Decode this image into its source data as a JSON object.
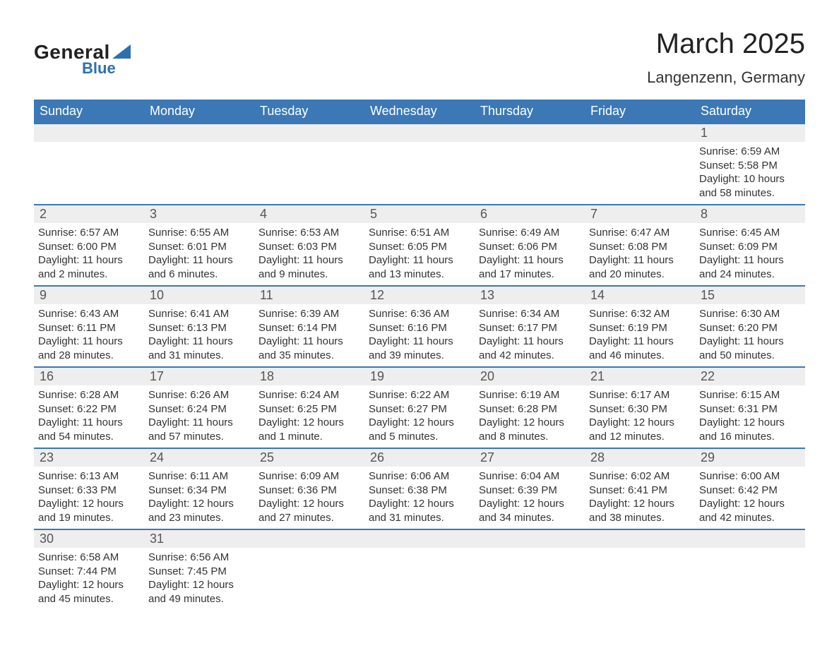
{
  "logo": {
    "text_general": "General",
    "text_blue": "Blue",
    "triangle_color": "#2e6fb0"
  },
  "title": "March 2025",
  "location": "Langenzenn, Germany",
  "colors": {
    "header_bg": "#3b78b5",
    "header_text": "#ffffff",
    "daynum_bg": "#eeeeee",
    "daynum_text": "#555555",
    "body_text": "#333333",
    "row_divider": "#3b78b5",
    "page_bg": "#ffffff"
  },
  "typography": {
    "title_fontsize": 40,
    "location_fontsize": 22,
    "dayheader_fontsize": 18,
    "daynum_fontsize": 18,
    "content_fontsize": 15
  },
  "day_headers": [
    "Sunday",
    "Monday",
    "Tuesday",
    "Wednesday",
    "Thursday",
    "Friday",
    "Saturday"
  ],
  "labels": {
    "sunrise": "Sunrise:",
    "sunset": "Sunset:",
    "daylight": "Daylight:"
  },
  "weeks": [
    [
      {
        "empty": true
      },
      {
        "empty": true
      },
      {
        "empty": true
      },
      {
        "empty": true
      },
      {
        "empty": true
      },
      {
        "empty": true
      },
      {
        "day": "1",
        "sunrise": "6:59 AM",
        "sunset": "5:58 PM",
        "daylight": "10 hours and 58 minutes."
      }
    ],
    [
      {
        "day": "2",
        "sunrise": "6:57 AM",
        "sunset": "6:00 PM",
        "daylight": "11 hours and 2 minutes."
      },
      {
        "day": "3",
        "sunrise": "6:55 AM",
        "sunset": "6:01 PM",
        "daylight": "11 hours and 6 minutes."
      },
      {
        "day": "4",
        "sunrise": "6:53 AM",
        "sunset": "6:03 PM",
        "daylight": "11 hours and 9 minutes."
      },
      {
        "day": "5",
        "sunrise": "6:51 AM",
        "sunset": "6:05 PM",
        "daylight": "11 hours and 13 minutes."
      },
      {
        "day": "6",
        "sunrise": "6:49 AM",
        "sunset": "6:06 PM",
        "daylight": "11 hours and 17 minutes."
      },
      {
        "day": "7",
        "sunrise": "6:47 AM",
        "sunset": "6:08 PM",
        "daylight": "11 hours and 20 minutes."
      },
      {
        "day": "8",
        "sunrise": "6:45 AM",
        "sunset": "6:09 PM",
        "daylight": "11 hours and 24 minutes."
      }
    ],
    [
      {
        "day": "9",
        "sunrise": "6:43 AM",
        "sunset": "6:11 PM",
        "daylight": "11 hours and 28 minutes."
      },
      {
        "day": "10",
        "sunrise": "6:41 AM",
        "sunset": "6:13 PM",
        "daylight": "11 hours and 31 minutes."
      },
      {
        "day": "11",
        "sunrise": "6:39 AM",
        "sunset": "6:14 PM",
        "daylight": "11 hours and 35 minutes."
      },
      {
        "day": "12",
        "sunrise": "6:36 AM",
        "sunset": "6:16 PM",
        "daylight": "11 hours and 39 minutes."
      },
      {
        "day": "13",
        "sunrise": "6:34 AM",
        "sunset": "6:17 PM",
        "daylight": "11 hours and 42 minutes."
      },
      {
        "day": "14",
        "sunrise": "6:32 AM",
        "sunset": "6:19 PM",
        "daylight": "11 hours and 46 minutes."
      },
      {
        "day": "15",
        "sunrise": "6:30 AM",
        "sunset": "6:20 PM",
        "daylight": "11 hours and 50 minutes."
      }
    ],
    [
      {
        "day": "16",
        "sunrise": "6:28 AM",
        "sunset": "6:22 PM",
        "daylight": "11 hours and 54 minutes."
      },
      {
        "day": "17",
        "sunrise": "6:26 AM",
        "sunset": "6:24 PM",
        "daylight": "11 hours and 57 minutes."
      },
      {
        "day": "18",
        "sunrise": "6:24 AM",
        "sunset": "6:25 PM",
        "daylight": "12 hours and 1 minute."
      },
      {
        "day": "19",
        "sunrise": "6:22 AM",
        "sunset": "6:27 PM",
        "daylight": "12 hours and 5 minutes."
      },
      {
        "day": "20",
        "sunrise": "6:19 AM",
        "sunset": "6:28 PM",
        "daylight": "12 hours and 8 minutes."
      },
      {
        "day": "21",
        "sunrise": "6:17 AM",
        "sunset": "6:30 PM",
        "daylight": "12 hours and 12 minutes."
      },
      {
        "day": "22",
        "sunrise": "6:15 AM",
        "sunset": "6:31 PM",
        "daylight": "12 hours and 16 minutes."
      }
    ],
    [
      {
        "day": "23",
        "sunrise": "6:13 AM",
        "sunset": "6:33 PM",
        "daylight": "12 hours and 19 minutes."
      },
      {
        "day": "24",
        "sunrise": "6:11 AM",
        "sunset": "6:34 PM",
        "daylight": "12 hours and 23 minutes."
      },
      {
        "day": "25",
        "sunrise": "6:09 AM",
        "sunset": "6:36 PM",
        "daylight": "12 hours and 27 minutes."
      },
      {
        "day": "26",
        "sunrise": "6:06 AM",
        "sunset": "6:38 PM",
        "daylight": "12 hours and 31 minutes."
      },
      {
        "day": "27",
        "sunrise": "6:04 AM",
        "sunset": "6:39 PM",
        "daylight": "12 hours and 34 minutes."
      },
      {
        "day": "28",
        "sunrise": "6:02 AM",
        "sunset": "6:41 PM",
        "daylight": "12 hours and 38 minutes."
      },
      {
        "day": "29",
        "sunrise": "6:00 AM",
        "sunset": "6:42 PM",
        "daylight": "12 hours and 42 minutes."
      }
    ],
    [
      {
        "day": "30",
        "sunrise": "6:58 AM",
        "sunset": "7:44 PM",
        "daylight": "12 hours and 45 minutes."
      },
      {
        "day": "31",
        "sunrise": "6:56 AM",
        "sunset": "7:45 PM",
        "daylight": "12 hours and 49 minutes."
      },
      {
        "empty": true
      },
      {
        "empty": true
      },
      {
        "empty": true
      },
      {
        "empty": true
      },
      {
        "empty": true
      }
    ]
  ]
}
